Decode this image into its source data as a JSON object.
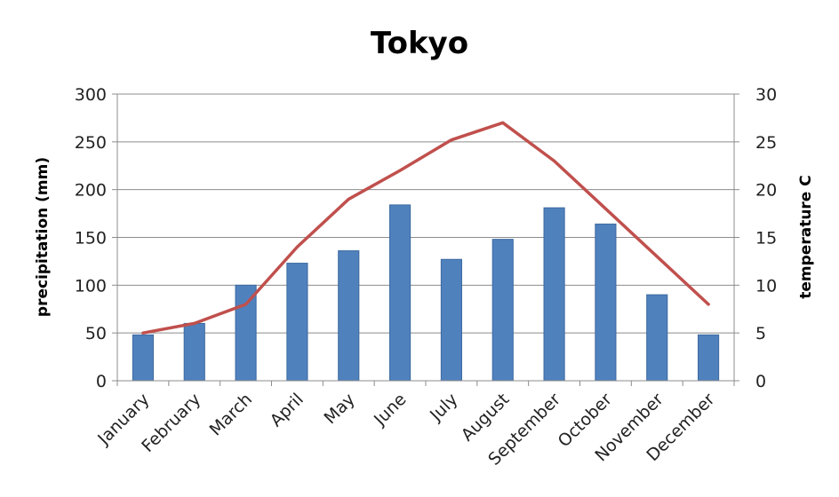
{
  "chart_data": {
    "type": "bar",
    "title": "Tokyo",
    "categories": [
      "January",
      "February",
      "March",
      "April",
      "May",
      "June",
      "July",
      "August",
      "September",
      "October",
      "November",
      "December"
    ],
    "ylabel": "precipitation (mm)",
    "y2label": "temperature C",
    "ylim": [
      0,
      300
    ],
    "y2lim": [
      0,
      30
    ],
    "yticks": [
      "0",
      "50",
      "100",
      "150",
      "200",
      "250",
      "300"
    ],
    "y2ticks": [
      "0",
      "5",
      "10",
      "15",
      "20",
      "25",
      "30"
    ],
    "grid": true,
    "series": [
      {
        "type": "bar",
        "axis": "left",
        "color": "#4f81bd",
        "values": [
          48,
          60,
          100,
          123,
          136,
          184,
          127,
          148,
          181,
          164,
          90,
          48
        ]
      },
      {
        "type": "line",
        "axis": "right",
        "color": "#c0504d",
        "values": [
          5,
          6,
          8,
          14,
          19,
          22,
          25.2,
          27,
          23,
          18,
          13,
          8
        ]
      }
    ]
  }
}
